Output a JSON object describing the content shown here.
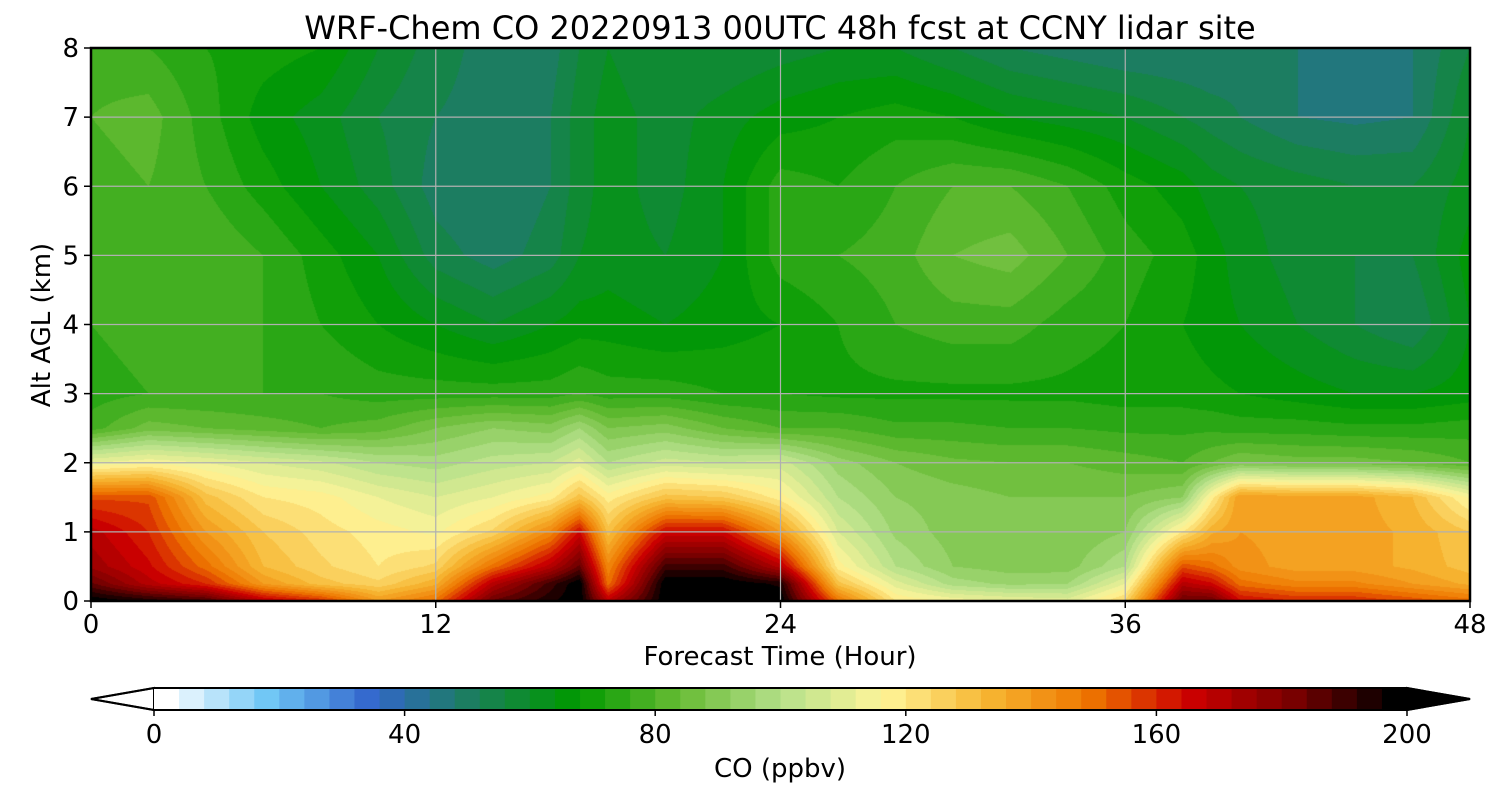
{
  "chart_data": {
    "type": "heatmap",
    "title": "WRF-Chem CO  20220913 00UTC 48h fcst at CCNY lidar site",
    "xlabel": "Forecast Time (Hour)",
    "ylabel": "Alt AGL (km)",
    "xlim": [
      0,
      48
    ],
    "ylim": [
      0,
      8
    ],
    "xticks": [
      0,
      12,
      24,
      36,
      48
    ],
    "yticks": [
      0,
      1,
      2,
      3,
      4,
      5,
      6,
      7,
      8
    ],
    "grid": true,
    "colorbar": {
      "label": "CO  (ppbv)",
      "range": [
        0,
        200
      ],
      "ticks": [
        0,
        40,
        80,
        120,
        160,
        200
      ],
      "extend": "both",
      "colors": [
        "#ffffff",
        "#6ec6f5",
        "#3366cc",
        "#1a7f5a",
        "#009900",
        "#66bb33",
        "#b5e08a",
        "#fff59a",
        "#f7b733",
        "#ee7700",
        "#cc0000",
        "#7a0000",
        "#000000"
      ]
    },
    "x": [
      0,
      2,
      4,
      6,
      8,
      10,
      12,
      14,
      16,
      17,
      18,
      20,
      22,
      24,
      26,
      28,
      30,
      32,
      34,
      36,
      38,
      39,
      40,
      42,
      44,
      46,
      48
    ],
    "y": [
      0,
      0.25,
      0.5,
      1,
      1.5,
      2,
      2.5,
      3,
      4,
      5,
      6,
      7,
      8
    ],
    "z": [
      [
        200,
        195,
        190,
        170,
        160,
        140,
        150,
        185,
        195,
        200,
        170,
        200,
        200,
        200,
        150,
        120,
        115,
        112,
        110,
        125,
        185,
        185,
        165,
        160,
        160,
        155,
        150
      ],
      [
        185,
        170,
        160,
        140,
        130,
        125,
        135,
        170,
        190,
        200,
        150,
        200,
        200,
        195,
        130,
        110,
        98,
        95,
        96,
        112,
        170,
        165,
        150,
        145,
        145,
        140,
        135
      ],
      [
        175,
        165,
        150,
        132,
        125,
        120,
        125,
        150,
        170,
        185,
        145,
        190,
        190,
        170,
        118,
        100,
        92,
        90,
        90,
        100,
        155,
        150,
        142,
        138,
        138,
        135,
        130
      ],
      [
        170,
        160,
        140,
        128,
        122,
        118,
        115,
        125,
        145,
        165,
        130,
        165,
        165,
        140,
        108,
        95,
        90,
        88,
        88,
        92,
        120,
        135,
        140,
        138,
        138,
        135,
        128
      ],
      [
        155,
        155,
        130,
        120,
        118,
        112,
        108,
        112,
        118,
        130,
        118,
        130,
        128,
        118,
        100,
        92,
        90,
        88,
        88,
        88,
        92,
        118,
        140,
        138,
        138,
        132,
        115
      ],
      [
        112,
        115,
        112,
        108,
        105,
        100,
        98,
        102,
        104,
        110,
        100,
        106,
        104,
        106,
        94,
        88,
        85,
        84,
        84,
        82,
        80,
        84,
        88,
        86,
        86,
        84,
        80
      ],
      [
        78,
        86,
        84,
        82,
        80,
        82,
        88,
        92,
        90,
        96,
        88,
        90,
        84,
        80,
        80,
        77,
        77,
        76,
        76,
        75,
        75,
        75,
        74,
        74,
        73,
        73,
        74
      ],
      [
        74,
        76,
        76,
        76,
        76,
        74,
        74,
        74,
        74,
        76,
        74,
        74,
        72,
        72,
        71,
        71,
        71,
        71,
        71,
        70,
        70,
        69,
        68,
        66,
        64,
        64,
        66
      ],
      [
        76,
        78,
        78,
        76,
        72,
        68,
        64,
        60,
        64,
        66,
        66,
        64,
        66,
        68,
        72,
        76,
        78,
        78,
        74,
        72,
        68,
        66,
        64,
        60,
        56,
        52,
        64
      ],
      [
        76,
        79,
        80,
        76,
        70,
        64,
        54,
        50,
        54,
        60,
        62,
        60,
        64,
        74,
        76,
        78,
        84,
        86,
        80,
        74,
        70,
        66,
        62,
        58,
        56,
        56,
        66
      ],
      [
        78,
        80,
        76,
        70,
        64,
        58,
        50,
        48,
        52,
        58,
        62,
        58,
        64,
        74,
        72,
        76,
        80,
        80,
        76,
        70,
        66,
        62,
        60,
        58,
        56,
        56,
        62
      ],
      [
        80,
        82,
        74,
        66,
        62,
        56,
        52,
        50,
        52,
        58,
        62,
        58,
        62,
        66,
        68,
        70,
        68,
        64,
        62,
        60,
        56,
        54,
        52,
        48,
        47,
        48,
        60
      ],
      [
        78,
        76,
        72,
        70,
        68,
        60,
        54,
        50,
        50,
        56,
        60,
        56,
        56,
        58,
        60,
        60,
        56,
        52,
        50,
        48,
        48,
        48,
        50,
        48,
        48,
        48,
        56
      ]
    ]
  }
}
